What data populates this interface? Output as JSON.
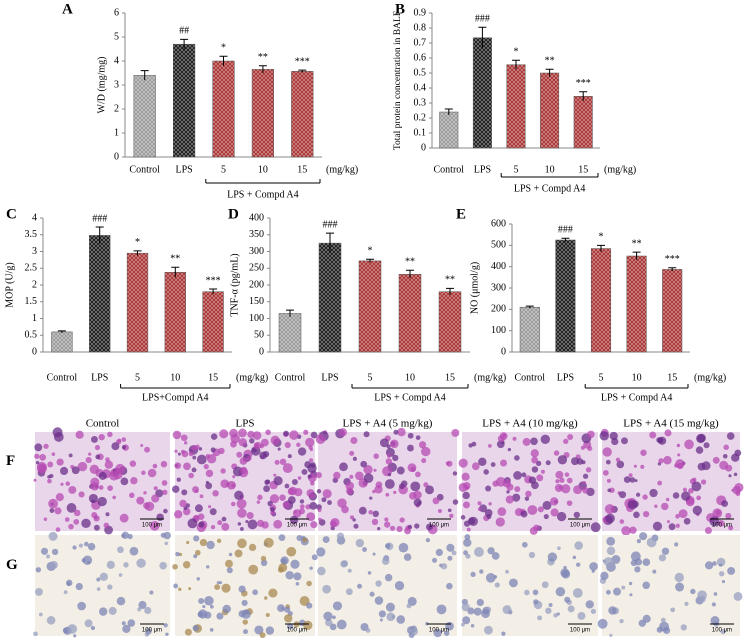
{
  "chart_data": [
    {
      "type": "bar",
      "panel": "A",
      "y_label": "W/D (mg/mg)",
      "categories": [
        "Control",
        "LPS",
        "5",
        "10",
        "15"
      ],
      "values": [
        3.4,
        4.7,
        4.0,
        3.65,
        3.57
      ],
      "errors": [
        0.2,
        0.2,
        0.2,
        0.15,
        0.05
      ],
      "annotations": [
        null,
        "##",
        "*",
        "**",
        "***"
      ],
      "colors": [
        "#9a9a9a",
        "#1a1a1a",
        "#a83232",
        "#a83232",
        "#a83232"
      ],
      "ylim": [
        0,
        6
      ],
      "yticks": [
        0,
        1,
        2,
        3,
        4,
        5,
        6
      ],
      "unit_label": "(mg/kg)",
      "group_label": "LPS + Compd A4"
    },
    {
      "type": "bar",
      "panel": "B",
      "y_label": "Total protein concentration in BALF",
      "categories": [
        "Control",
        "LPS",
        "5",
        "10",
        "15"
      ],
      "values": [
        0.24,
        0.735,
        0.555,
        0.5,
        0.345
      ],
      "errors": [
        0.02,
        0.07,
        0.03,
        0.025,
        0.03
      ],
      "annotations": [
        null,
        "###",
        "*",
        "**",
        "***"
      ],
      "colors": [
        "#9a9a9a",
        "#1a1a1a",
        "#a83232",
        "#a83232",
        "#a83232"
      ],
      "ylim": [
        0,
        0.9
      ],
      "yticks": [
        0,
        0.1,
        0.2,
        0.3,
        0.4,
        0.5,
        0.6,
        0.7,
        0.8,
        0.9
      ],
      "unit_label": "(mg/kg)",
      "group_label": "LPS + Compd A4"
    },
    {
      "type": "bar",
      "panel": "C",
      "y_label": "MOP (U/g)",
      "categories": [
        "Control",
        "LPS",
        "5",
        "10",
        "15"
      ],
      "values": [
        0.6,
        3.48,
        2.95,
        2.38,
        1.8
      ],
      "errors": [
        0.03,
        0.25,
        0.07,
        0.15,
        0.08
      ],
      "annotations": [
        null,
        "###",
        "*",
        "**",
        "***"
      ],
      "colors": [
        "#9a9a9a",
        "#1a1a1a",
        "#a83232",
        "#a83232",
        "#a83232"
      ],
      "ylim": [
        0,
        4
      ],
      "yticks": [
        0,
        0.5,
        1,
        1.5,
        2,
        2.5,
        3,
        3.5,
        4
      ],
      "unit_label": "(mg/kg)",
      "group_label": "LPS+Compd A4"
    },
    {
      "type": "bar",
      "panel": "D",
      "y_label": "TNF-α (pg/mL)",
      "categories": [
        "Control",
        "LPS",
        "5",
        "10",
        "15"
      ],
      "values": [
        115,
        325,
        272,
        232,
        180
      ],
      "errors": [
        10,
        30,
        5,
        12,
        10
      ],
      "annotations": [
        null,
        "###",
        "*",
        "**",
        "**"
      ],
      "colors": [
        "#9a9a9a",
        "#1a1a1a",
        "#a83232",
        "#a83232",
        "#a83232"
      ],
      "ylim": [
        0,
        400
      ],
      "yticks": [
        0,
        50,
        100,
        150,
        200,
        250,
        300,
        350,
        400
      ],
      "unit_label": "(mg/kg)",
      "group_label": "LPS + Compd A4"
    },
    {
      "type": "bar",
      "panel": "E",
      "y_label": "NO (μmol/g)",
      "categories": [
        "Control",
        "LPS",
        "5",
        "10",
        "15"
      ],
      "values": [
        210,
        525,
        485,
        450,
        387
      ],
      "errors": [
        5,
        8,
        15,
        18,
        8
      ],
      "annotations": [
        null,
        "###",
        "*",
        "**",
        "***"
      ],
      "colors": [
        "#9a9a9a",
        "#1a1a1a",
        "#a83232",
        "#a83232",
        "#a83232"
      ],
      "ylim": [
        0,
        600
      ],
      "yticks": [
        0,
        100,
        200,
        300,
        400,
        500,
        600
      ],
      "unit_label": "(mg/kg)",
      "group_label": "LPS + Compd A4"
    }
  ],
  "histology": {
    "row_labels": [
      "F",
      "G"
    ],
    "columns": [
      "Control",
      "LPS",
      "LPS + A4 (5 mg/kg)",
      "LPS + A4 (10 mg/kg)",
      "LPS + A4 (15 mg/kg)"
    ],
    "scale_bar": "100 μm"
  }
}
